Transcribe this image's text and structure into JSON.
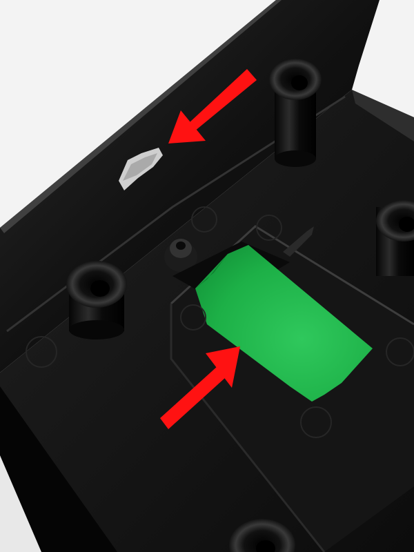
{
  "scene": {
    "colors": {
      "background": "#f3f3f3",
      "enclosure_body": "#0d0d0d",
      "enclosure_floor": "#1a1a1a",
      "enclosure_highlight": "#3a3a3a",
      "green_pad": "#1fb34a",
      "arrow": "#ff1212",
      "scraped_mark": "#c9c9c9"
    },
    "annotations": [
      {
        "name": "arrow-pointing-to-scraped-wall-mark",
        "color": "#ff1212"
      },
      {
        "name": "arrow-pointing-to-green-pad",
        "color": "#ff1212"
      }
    ]
  }
}
